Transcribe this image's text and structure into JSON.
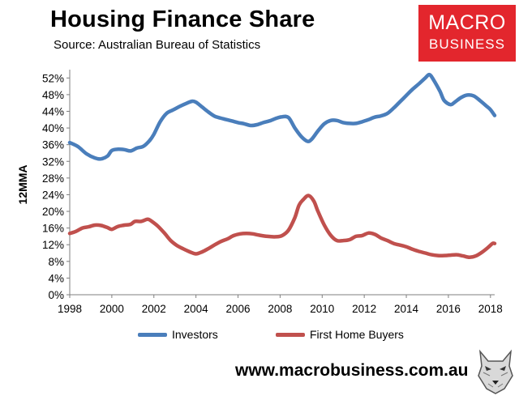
{
  "title": "Housing Finance Share",
  "subtitle": "Source: Australian Bureau of Statistics",
  "logo": {
    "line1": "MACRO",
    "line2": "BUSINESS",
    "color": "#e3262d"
  },
  "website": "www.macrobusiness.com.au",
  "chart_data": {
    "type": "line",
    "ylabel": "12MMA",
    "xlim": [
      1998,
      2018.2
    ],
    "ylim": [
      0,
      54
    ],
    "y_ticks": [
      0,
      4,
      8,
      12,
      16,
      20,
      24,
      28,
      32,
      36,
      40,
      44,
      48,
      52
    ],
    "y_tick_labels": [
      "0%",
      "4%",
      "8%",
      "12%",
      "16%",
      "20%",
      "24%",
      "28%",
      "32%",
      "36%",
      "40%",
      "44%",
      "48%",
      "52%"
    ],
    "x_ticks": [
      1998,
      2000,
      2002,
      2004,
      2006,
      2008,
      2010,
      2012,
      2014,
      2016,
      2018
    ],
    "x_tick_labels": [
      "1998",
      "2000",
      "2002",
      "2004",
      "2006",
      "2008",
      "2010",
      "2012",
      "2014",
      "2016",
      "2018"
    ],
    "grid": false,
    "legend_position": "bottom",
    "series": [
      {
        "name": "Investors",
        "color": "#4a7ebb",
        "points": [
          [
            1998.0,
            36.5
          ],
          [
            1998.4,
            35.5
          ],
          [
            1998.8,
            33.8
          ],
          [
            1999.2,
            32.8
          ],
          [
            1999.5,
            32.6
          ],
          [
            1999.8,
            33.3
          ],
          [
            2000.0,
            34.6
          ],
          [
            2000.3,
            34.9
          ],
          [
            2000.6,
            34.8
          ],
          [
            2000.9,
            34.5
          ],
          [
            2001.2,
            35.2
          ],
          [
            2001.5,
            35.6
          ],
          [
            2001.8,
            37.0
          ],
          [
            2002.0,
            38.5
          ],
          [
            2002.3,
            41.5
          ],
          [
            2002.6,
            43.5
          ],
          [
            2002.9,
            44.3
          ],
          [
            2003.2,
            45.1
          ],
          [
            2003.5,
            45.8
          ],
          [
            2003.8,
            46.4
          ],
          [
            2004.0,
            46.2
          ],
          [
            2004.3,
            45.0
          ],
          [
            2004.6,
            43.8
          ],
          [
            2004.9,
            42.8
          ],
          [
            2005.3,
            42.2
          ],
          [
            2005.7,
            41.7
          ],
          [
            2006.0,
            41.3
          ],
          [
            2006.3,
            41.0
          ],
          [
            2006.6,
            40.6
          ],
          [
            2006.9,
            40.8
          ],
          [
            2007.2,
            41.3
          ],
          [
            2007.5,
            41.7
          ],
          [
            2007.8,
            42.3
          ],
          [
            2008.1,
            42.7
          ],
          [
            2008.4,
            42.5
          ],
          [
            2008.7,
            40.0
          ],
          [
            2009.0,
            38.0
          ],
          [
            2009.3,
            36.8
          ],
          [
            2009.5,
            37.3
          ],
          [
            2009.8,
            39.3
          ],
          [
            2010.1,
            41.0
          ],
          [
            2010.4,
            41.8
          ],
          [
            2010.7,
            41.8
          ],
          [
            2011.0,
            41.3
          ],
          [
            2011.3,
            41.1
          ],
          [
            2011.6,
            41.1
          ],
          [
            2011.9,
            41.5
          ],
          [
            2012.2,
            42.0
          ],
          [
            2012.5,
            42.6
          ],
          [
            2012.8,
            42.9
          ],
          [
            2013.1,
            43.5
          ],
          [
            2013.4,
            44.8
          ],
          [
            2013.7,
            46.3
          ],
          [
            2014.0,
            47.8
          ],
          [
            2014.3,
            49.3
          ],
          [
            2014.6,
            50.6
          ],
          [
            2014.9,
            52.0
          ],
          [
            2015.1,
            52.8
          ],
          [
            2015.3,
            51.5
          ],
          [
            2015.6,
            48.8
          ],
          [
            2015.8,
            46.6
          ],
          [
            2016.1,
            45.6
          ],
          [
            2016.3,
            46.2
          ],
          [
            2016.6,
            47.3
          ],
          [
            2016.9,
            47.9
          ],
          [
            2017.2,
            47.7
          ],
          [
            2017.5,
            46.6
          ],
          [
            2017.8,
            45.3
          ],
          [
            2018.0,
            44.4
          ],
          [
            2018.2,
            43.0
          ]
        ]
      },
      {
        "name": "First Home Buyers",
        "color": "#c0504d",
        "points": [
          [
            1998.0,
            14.7
          ],
          [
            1998.3,
            15.2
          ],
          [
            1998.6,
            16.0
          ],
          [
            1998.9,
            16.3
          ],
          [
            1999.2,
            16.7
          ],
          [
            1999.5,
            16.6
          ],
          [
            1999.8,
            16.1
          ],
          [
            2000.0,
            15.7
          ],
          [
            2000.3,
            16.4
          ],
          [
            2000.6,
            16.7
          ],
          [
            2000.9,
            16.9
          ],
          [
            2001.1,
            17.6
          ],
          [
            2001.4,
            17.6
          ],
          [
            2001.7,
            18.1
          ],
          [
            2001.9,
            17.6
          ],
          [
            2002.2,
            16.4
          ],
          [
            2002.5,
            14.8
          ],
          [
            2002.8,
            13.0
          ],
          [
            2003.1,
            11.8
          ],
          [
            2003.4,
            11.0
          ],
          [
            2003.7,
            10.3
          ],
          [
            2004.0,
            9.8
          ],
          [
            2004.3,
            10.3
          ],
          [
            2004.6,
            11.1
          ],
          [
            2004.9,
            12.0
          ],
          [
            2005.2,
            12.8
          ],
          [
            2005.5,
            13.4
          ],
          [
            2005.8,
            14.2
          ],
          [
            2006.1,
            14.6
          ],
          [
            2006.4,
            14.7
          ],
          [
            2006.7,
            14.6
          ],
          [
            2007.0,
            14.3
          ],
          [
            2007.4,
            14.0
          ],
          [
            2007.8,
            13.9
          ],
          [
            2008.1,
            14.2
          ],
          [
            2008.4,
            15.5
          ],
          [
            2008.7,
            18.5
          ],
          [
            2008.9,
            21.5
          ],
          [
            2009.1,
            22.8
          ],
          [
            2009.35,
            23.8
          ],
          [
            2009.6,
            22.5
          ],
          [
            2009.8,
            20.0
          ],
          [
            2010.1,
            16.7
          ],
          [
            2010.4,
            14.3
          ],
          [
            2010.7,
            13.0
          ],
          [
            2011.0,
            13.0
          ],
          [
            2011.3,
            13.2
          ],
          [
            2011.6,
            14.0
          ],
          [
            2011.9,
            14.2
          ],
          [
            2012.2,
            14.8
          ],
          [
            2012.5,
            14.5
          ],
          [
            2012.8,
            13.6
          ],
          [
            2013.1,
            13.0
          ],
          [
            2013.4,
            12.3
          ],
          [
            2013.7,
            11.9
          ],
          [
            2014.0,
            11.5
          ],
          [
            2014.3,
            10.9
          ],
          [
            2014.6,
            10.4
          ],
          [
            2014.9,
            10.0
          ],
          [
            2015.2,
            9.6
          ],
          [
            2015.5,
            9.4
          ],
          [
            2015.8,
            9.4
          ],
          [
            2016.1,
            9.5
          ],
          [
            2016.4,
            9.6
          ],
          [
            2016.7,
            9.3
          ],
          [
            2017.0,
            9.0
          ],
          [
            2017.3,
            9.3
          ],
          [
            2017.6,
            10.2
          ],
          [
            2017.9,
            11.4
          ],
          [
            2018.1,
            12.3
          ],
          [
            2018.2,
            12.3
          ]
        ]
      }
    ]
  }
}
